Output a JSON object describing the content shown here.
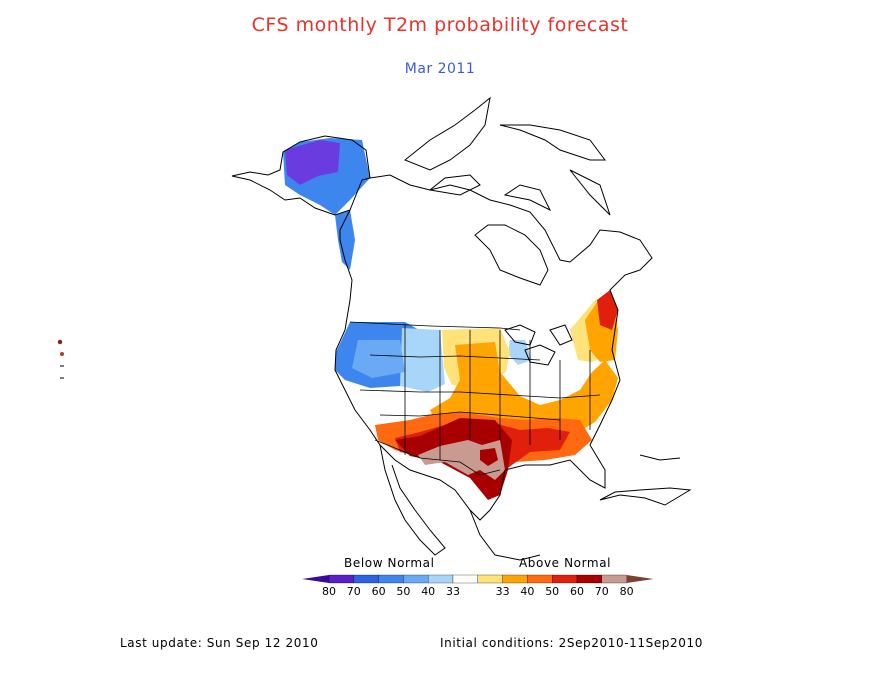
{
  "title": "CFS monthly T2m probability forecast",
  "subtitle": "Mar 2011",
  "legend": {
    "below_label": "Below Normal",
    "above_label": "Above Normal",
    "bins": [
      {
        "label": "80",
        "color": "#5a1fc8"
      },
      {
        "label": "70",
        "color": "#2a62e0"
      },
      {
        "label": "60",
        "color": "#3d86ee"
      },
      {
        "label": "50",
        "color": "#6aaaf5"
      },
      {
        "label": "40",
        "color": "#a8d6f8"
      },
      {
        "label": "33",
        "color": "#ffffff"
      },
      {
        "label": "33",
        "color": "#ffe27a"
      },
      {
        "label": "40",
        "color": "#ffa400"
      },
      {
        "label": "50",
        "color": "#ff6a10"
      },
      {
        "label": "60",
        "color": "#e0200c"
      },
      {
        "label": "70",
        "color": "#a80000"
      },
      {
        "label": "80",
        "color": "#c89a90"
      }
    ],
    "end_left_color": "#3a0aa0",
    "end_right_color": "#7a4030"
  },
  "footer": {
    "last_update": "Last update: Sun Sep 12 2010",
    "initial_conditions": "Initial conditions:  2Sep2010-11Sep2010"
  },
  "side_marks": [
    "●",
    "●",
    "−"
  ]
}
